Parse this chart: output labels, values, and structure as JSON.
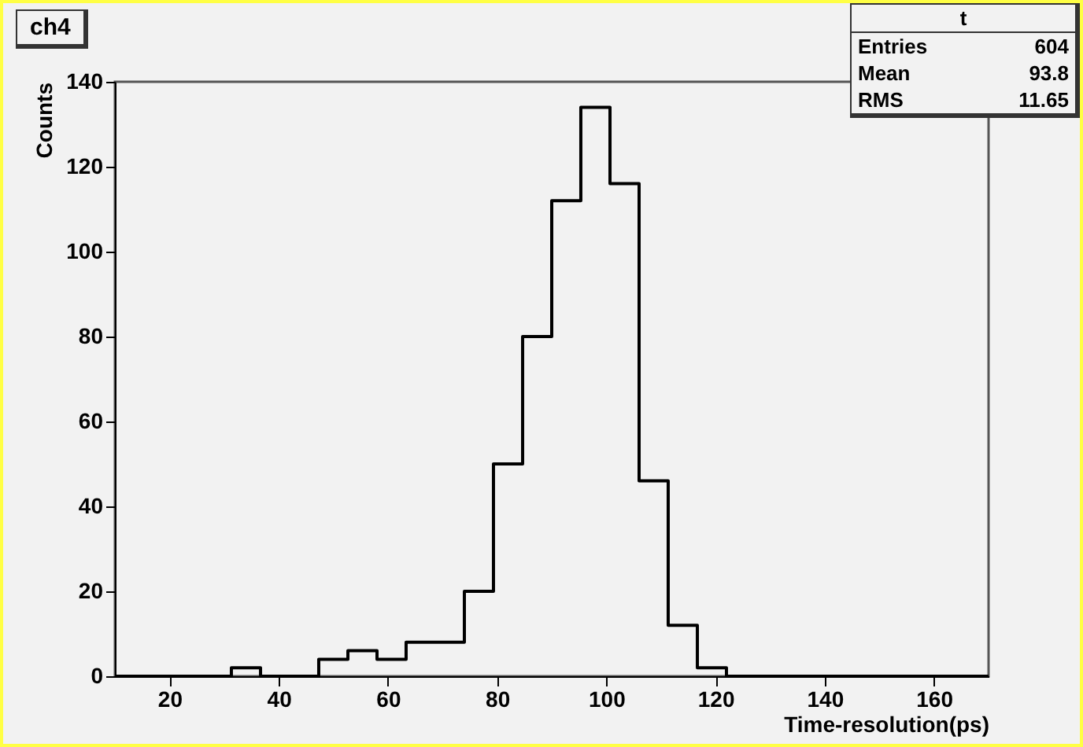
{
  "chart_data": {
    "type": "histogram",
    "title": "ch4",
    "xlabel": "Time-resolution(ps)",
    "ylabel": "Counts",
    "bins": [
      10,
      15.33,
      20.67,
      26,
      31.33,
      36.67,
      42,
      47.33,
      52.67,
      58,
      63.33,
      68.67,
      74,
      79.33,
      84.67,
      90,
      95.33,
      100.67,
      106,
      111.33,
      116.67,
      122,
      127.33,
      132.67,
      138,
      143.33,
      148.67,
      154,
      159.33,
      164.67,
      170
    ],
    "values": [
      0,
      0,
      0,
      0,
      2,
      0,
      0,
      4,
      6,
      4,
      8,
      8,
      20,
      50,
      80,
      112,
      134,
      116,
      46,
      12,
      2,
      0,
      0,
      0,
      0,
      0,
      0,
      0,
      0,
      0
    ],
    "color": "#000000",
    "xlim": [
      10,
      170
    ],
    "ylim": [
      0,
      140
    ],
    "xticks": [
      20,
      40,
      60,
      80,
      100,
      120,
      140,
      160
    ],
    "yticks": [
      0,
      20,
      40,
      60,
      80,
      100,
      120,
      140
    ],
    "annotations": [
      "t",
      "Entries",
      "604",
      "Mean",
      "93.8",
      "RMS",
      "11.65"
    ]
  }
}
